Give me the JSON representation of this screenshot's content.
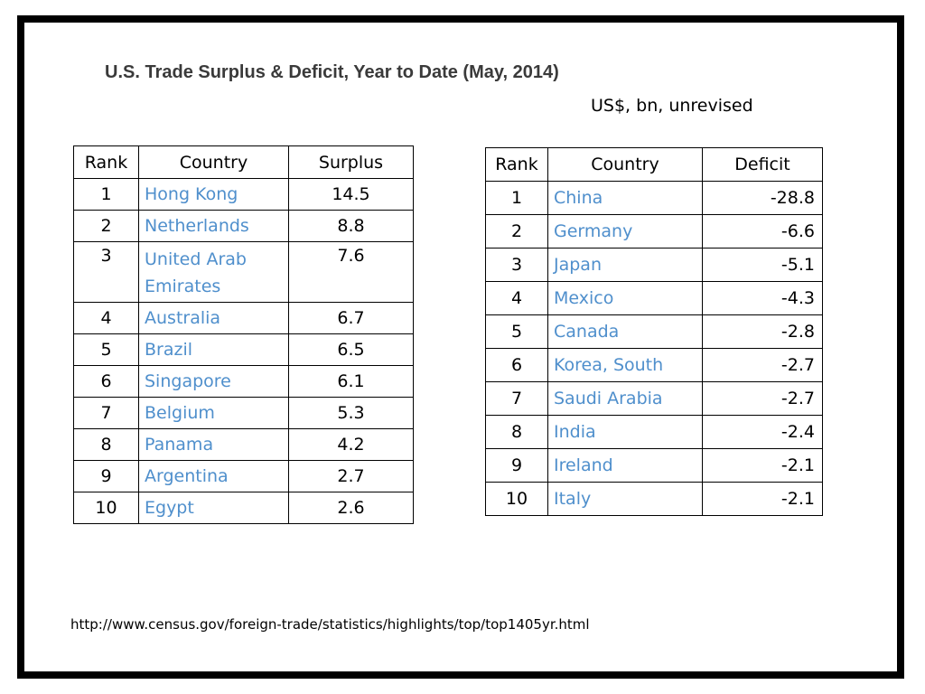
{
  "title": "U.S. Trade Surplus & Deficit, Year to Date (May, 2014)",
  "subtitle": "US$, bn, unrevised",
  "surplus_table": {
    "headers": [
      "Rank",
      "Country",
      "Surplus"
    ],
    "rows": [
      {
        "rank": "1",
        "country": "Hong Kong",
        "value": "14.5"
      },
      {
        "rank": "2",
        "country": "Netherlands",
        "value": "8.8"
      },
      {
        "rank": "3",
        "country": "United Arab Emirates",
        "value": "7.6"
      },
      {
        "rank": "4",
        "country": "Australia",
        "value": "6.7"
      },
      {
        "rank": "5",
        "country": "Brazil",
        "value": "6.5"
      },
      {
        "rank": "6",
        "country": "Singapore",
        "value": "6.1"
      },
      {
        "rank": "7",
        "country": "Belgium",
        "value": "5.3"
      },
      {
        "rank": "8",
        "country": "Panama",
        "value": "4.2"
      },
      {
        "rank": "9",
        "country": "Argentina",
        "value": "2.7"
      },
      {
        "rank": "10",
        "country": "Egypt",
        "value": "2.6"
      }
    ]
  },
  "deficit_table": {
    "headers": [
      "Rank",
      "Country",
      "Deficit"
    ],
    "rows": [
      {
        "rank": "1",
        "country": "China",
        "value": "-28.8"
      },
      {
        "rank": "2",
        "country": "Germany",
        "value": "-6.6"
      },
      {
        "rank": "3",
        "country": "Japan",
        "value": "-5.1"
      },
      {
        "rank": "4",
        "country": "Mexico",
        "value": "-4.3"
      },
      {
        "rank": "5",
        "country": "Canada",
        "value": "-2.8"
      },
      {
        "rank": "6",
        "country": "Korea, South",
        "value": "-2.7"
      },
      {
        "rank": "7",
        "country": "Saudi Arabia",
        "value": "-2.7"
      },
      {
        "rank": "8",
        "country": "India",
        "value": "-2.4"
      },
      {
        "rank": "9",
        "country": "Ireland",
        "value": "-2.1"
      },
      {
        "rank": "10",
        "country": "Italy",
        "value": "-2.1"
      }
    ]
  },
  "source_url": "http://www.census.gov/foreign-trade/statistics/highlights/top/top1405yr.html",
  "colors": {
    "link": "#4f8fcc",
    "title": "#3a3a3a",
    "frame": "#000000"
  }
}
